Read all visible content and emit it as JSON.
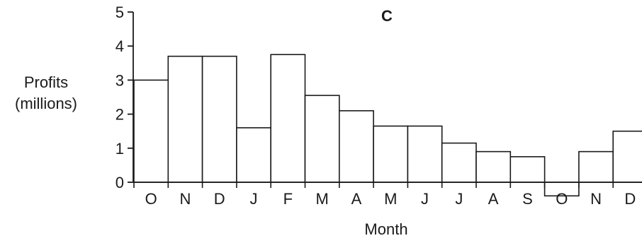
{
  "chart_data": {
    "type": "bar",
    "title": "C",
    "ylabel_lines": [
      "Profits",
      "(millions)"
    ],
    "xlabel": "Month",
    "ylim": [
      0,
      5
    ],
    "yticks": [
      0,
      1,
      2,
      3,
      4,
      5
    ],
    "categories": [
      "O",
      "N",
      "D",
      "J",
      "F",
      "M",
      "A",
      "M",
      "J",
      "J",
      "A",
      "S",
      "O",
      "N",
      "D"
    ],
    "values": [
      3.0,
      3.7,
      3.7,
      1.6,
      3.75,
      2.55,
      2.1,
      1.65,
      1.65,
      1.15,
      0.9,
      0.75,
      -0.4,
      0.9,
      1.5
    ],
    "colors": {
      "stroke": "#1a1a1a",
      "fill": "#ffffff"
    }
  }
}
